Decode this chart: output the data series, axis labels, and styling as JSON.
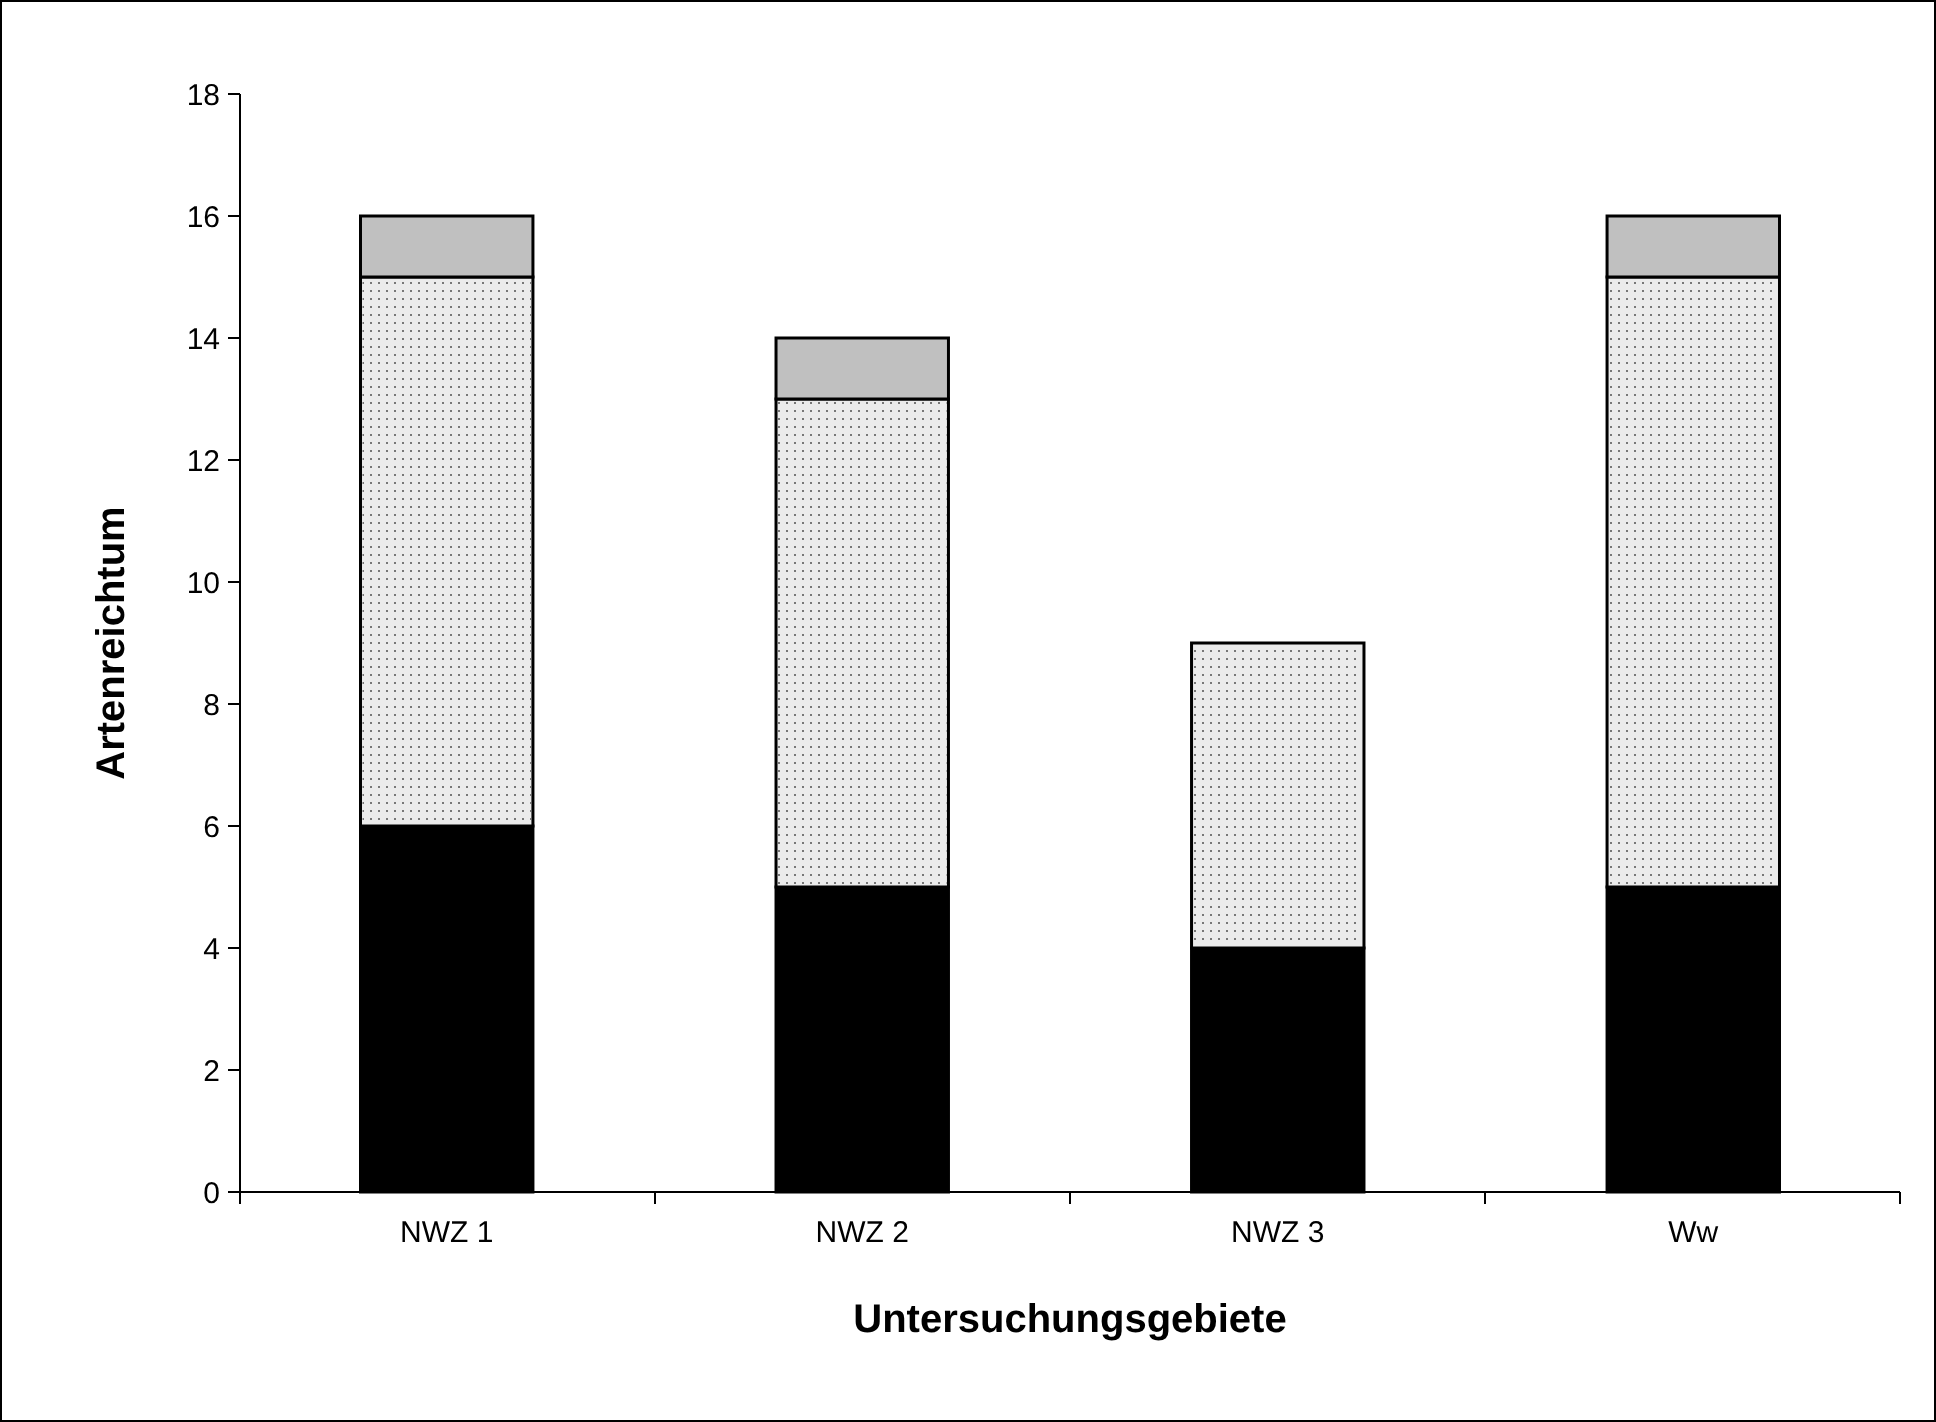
{
  "chart_data": {
    "type": "bar",
    "stacked": true,
    "xlabel": "Untersuchungsgebiete",
    "ylabel": "Artenreichtum",
    "categories": [
      "NWZ 1",
      "NWZ 2",
      "NWZ 3",
      "Ww"
    ],
    "series": [
      {
        "color": "#000000",
        "values": [
          6,
          5,
          4,
          5
        ]
      },
      {
        "color": "#ebebeb",
        "values": [
          9,
          8,
          5,
          10
        ]
      },
      {
        "color": "#c0c0c0",
        "values": [
          1,
          1,
          0,
          1
        ]
      }
    ],
    "ylim": [
      0,
      18
    ],
    "yticks": [
      0,
      2,
      4,
      6,
      8,
      10,
      12,
      14,
      16,
      18
    ],
    "grid": false
  }
}
